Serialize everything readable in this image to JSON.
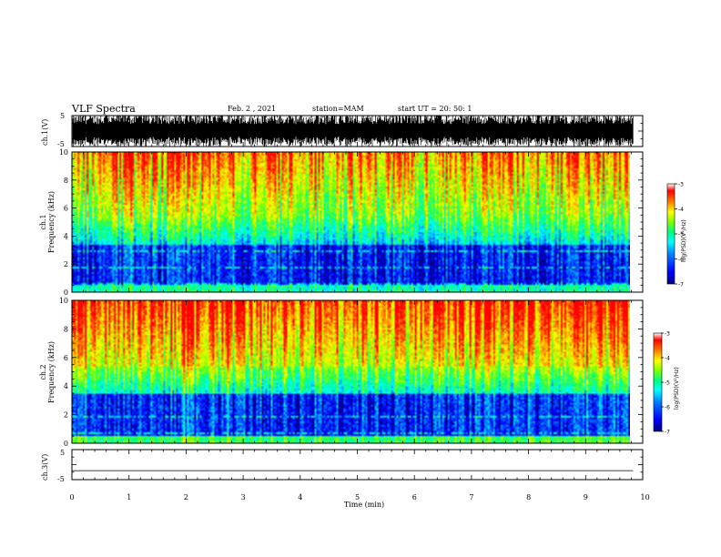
{
  "header": {
    "title": "VLF Spectra",
    "date": "Feb. 2 , 2021",
    "station": "station=MAM",
    "start": "start  UT  =   20: 50: 1"
  },
  "colors": {
    "colormap": [
      "#000080",
      "#0000ff",
      "#0080ff",
      "#00ffff",
      "#00ff80",
      "#80ff00",
      "#ffff00",
      "#ff8000",
      "#ff0000",
      "#ffffff"
    ],
    "trace": "#000000",
    "background": "#ffffff"
  },
  "chart_data": [
    {
      "type": "line",
      "panel": "ch1_waveform",
      "ylabel": "ch.1(V)",
      "ylim": [
        -5,
        5
      ],
      "yticks": [
        "5",
        "-5"
      ],
      "xlim": [
        0,
        10
      ],
      "description_values": "dense VLF waveform, amplitude saturating near ±5 V"
    },
    {
      "type": "heatmap",
      "panel": "ch1_spectrogram",
      "ylabel": "ch.1\nFrequency (kHz)",
      "ylabel_line1": "ch.1",
      "ylabel_line2": "Frequency (kHz)",
      "ylim": [
        0,
        10
      ],
      "yticks": [
        "0",
        "2",
        "4",
        "6",
        "8",
        "10"
      ],
      "xlim": [
        0,
        10
      ],
      "colorbar": {
        "label": "log(PSD)(V²/Hz)",
        "range": [
          -7,
          -3
        ],
        "ticks": [
          "-3",
          "-4",
          "-5",
          "-6",
          "-7"
        ]
      }
    },
    {
      "type": "heatmap",
      "panel": "ch2_spectrogram",
      "ylabel_line1": "ch.2",
      "ylabel_line2": "Frequency (kHz)",
      "ylim": [
        0,
        10
      ],
      "yticks": [
        "0",
        "2",
        "4",
        "6",
        "8",
        "10"
      ],
      "xlim": [
        0,
        10
      ],
      "colorbar": {
        "label": "log(PSD)(V²/Hz)",
        "range": [
          -7,
          -3
        ],
        "ticks": [
          "-3",
          "-4",
          "-5",
          "-6",
          "-7"
        ]
      }
    },
    {
      "type": "line",
      "panel": "ch3_waveform",
      "ylabel": "ch.3(V)",
      "ylim": [
        -5,
        5
      ],
      "yticks": [
        "5",
        "-5"
      ],
      "xlim": [
        0,
        10
      ],
      "values": [
        -2,
        -2
      ]
    }
  ],
  "xaxis": {
    "label": "Time (min)",
    "ticks": [
      "0",
      "1",
      "2",
      "3",
      "4",
      "5",
      "6",
      "7",
      "8",
      "9",
      "10"
    ],
    "data_end": 9.83
  }
}
